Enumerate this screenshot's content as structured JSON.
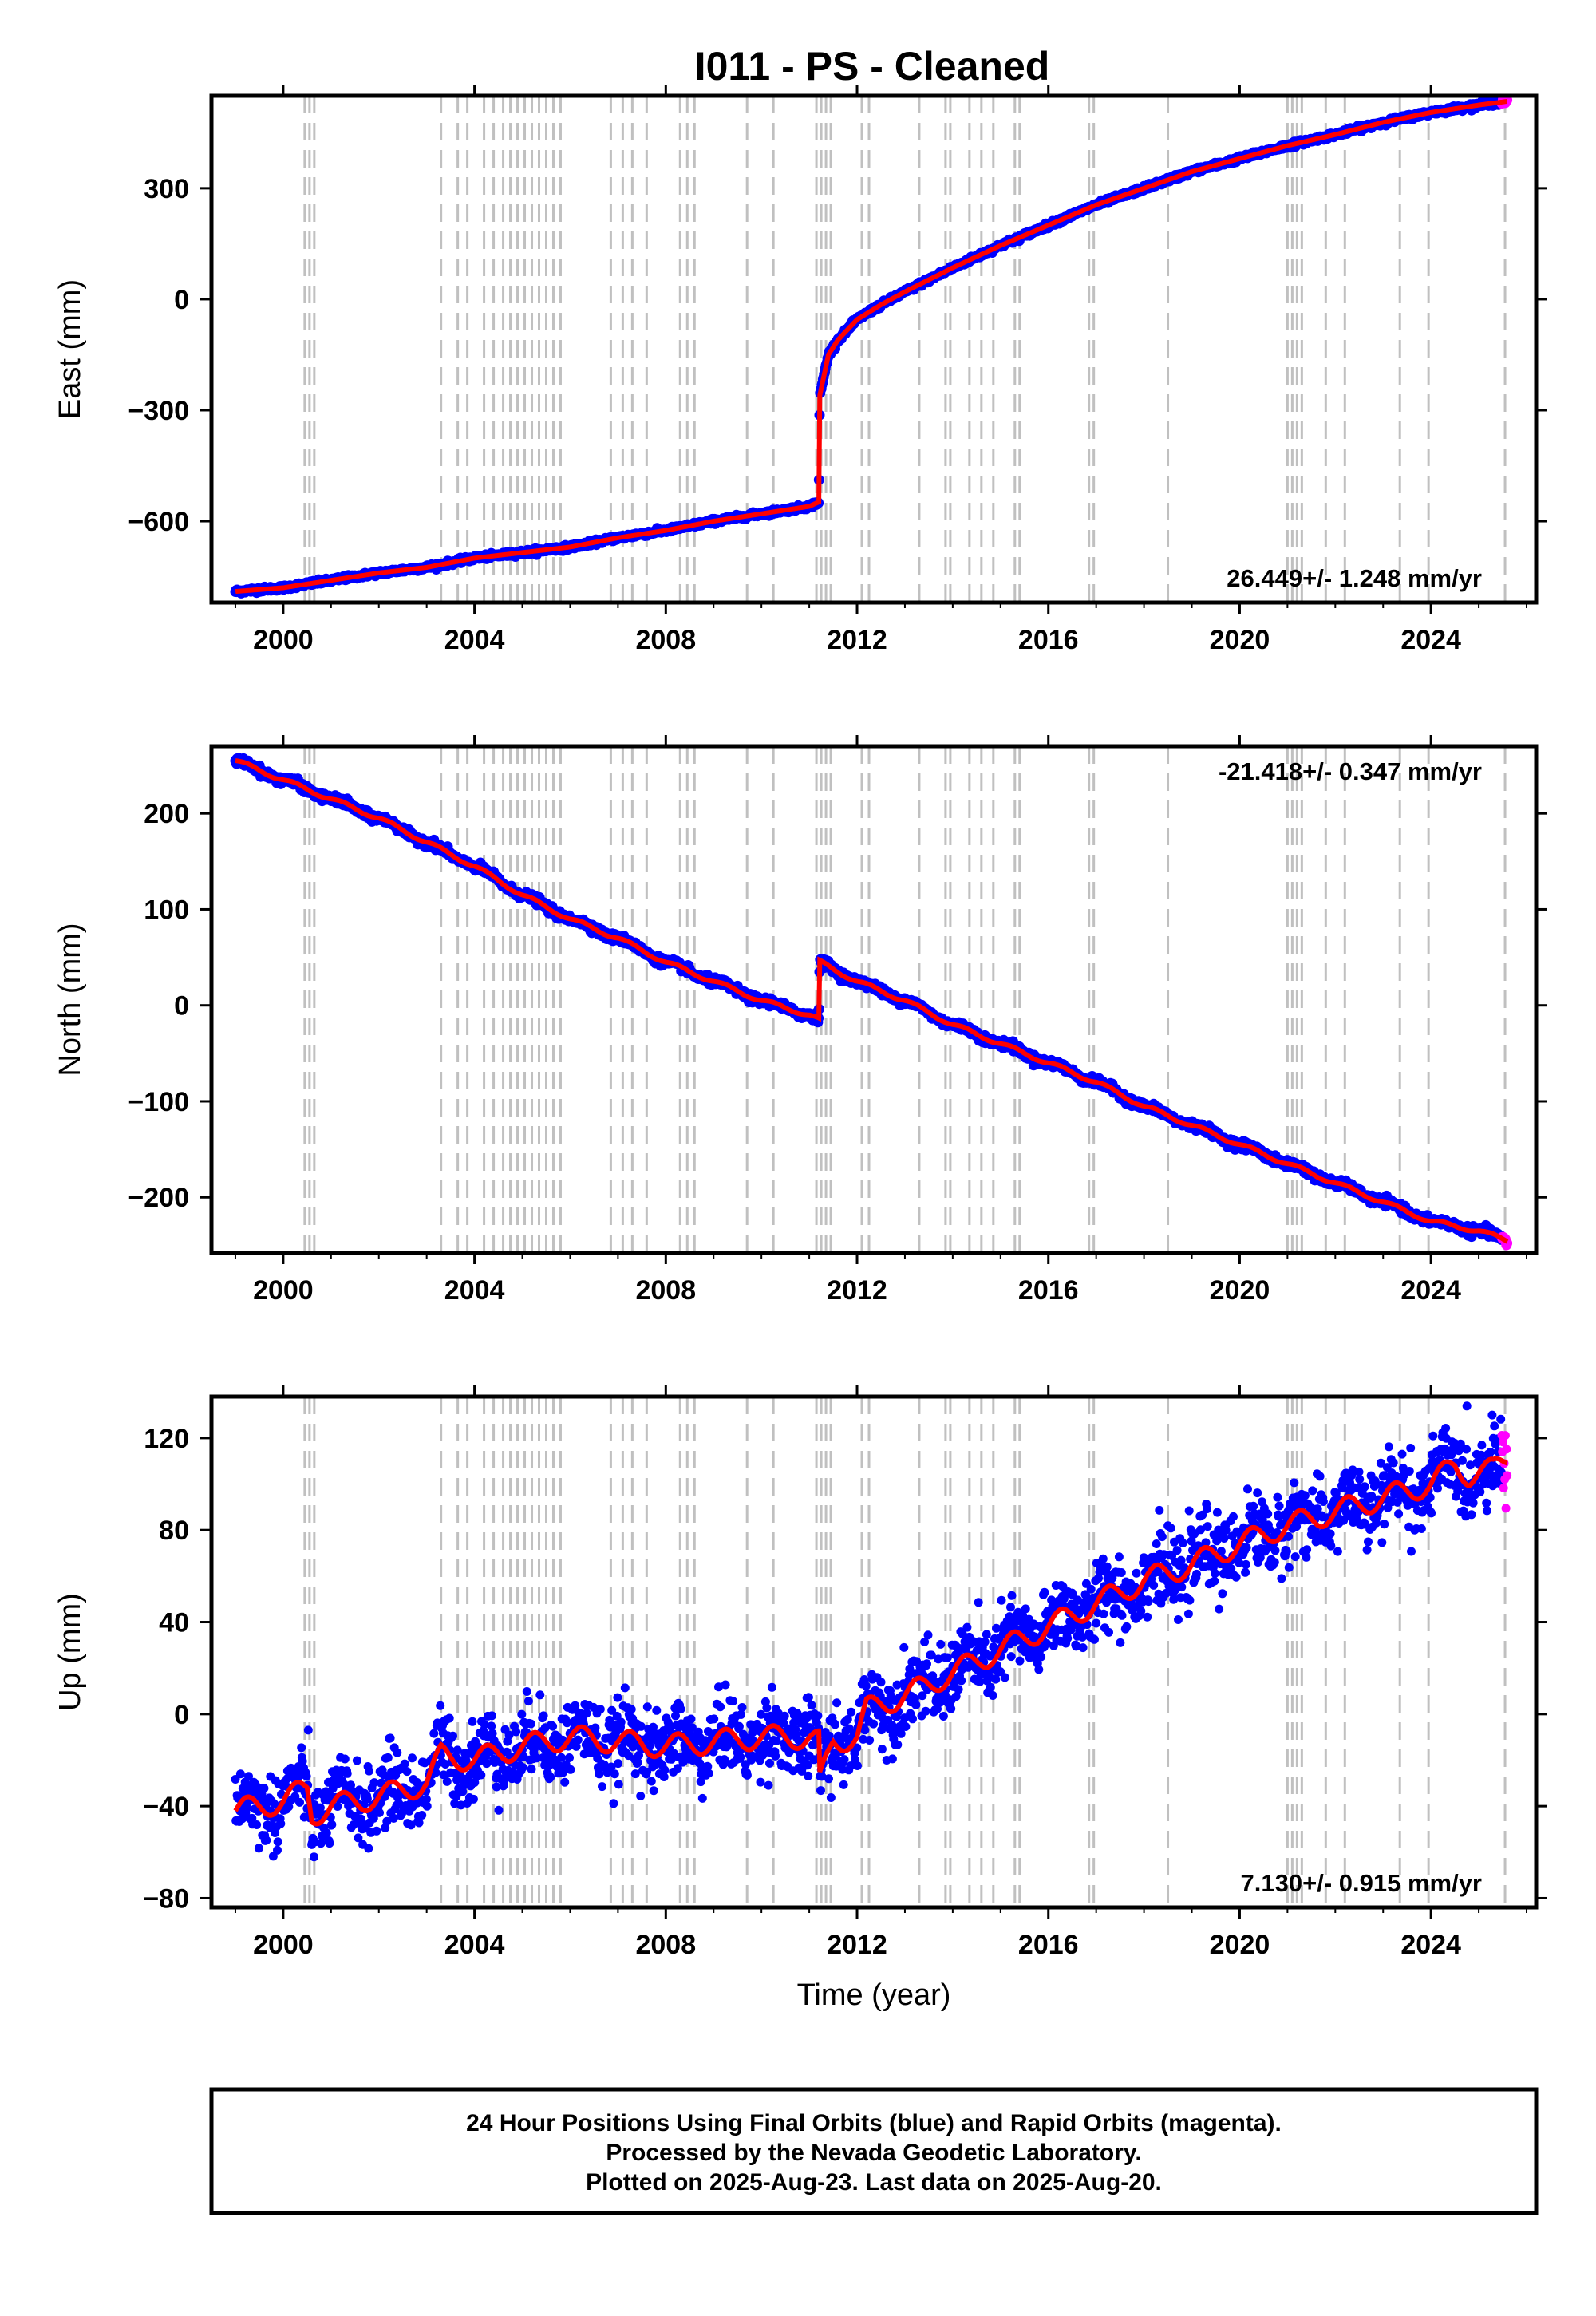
{
  "figure": {
    "title": "I011  - PS - Cleaned",
    "caption": [
      "24 Hour Positions Using Final Orbits (blue) and Rapid Orbits (magenta).",
      "Processed by the Nevada Geodetic Laboratory.",
      "Plotted on 2025-Aug-23. Last data on 2025-Aug-20."
    ],
    "colors": {
      "final": "#0000ff",
      "rapid": "#ff00ff",
      "model": "#ff0000",
      "steps": "#c0c0c0",
      "frame": "#000000"
    }
  },
  "chart_data": [
    {
      "type": "scatter",
      "ylabel": "East (mm)",
      "xlabel": "",
      "xlim": [
        1998.5,
        2026.2
      ],
      "ylim": [
        -820,
        550
      ],
      "xticks": [
        2000,
        2004,
        2008,
        2012,
        2016,
        2020,
        2024
      ],
      "yticks": [
        -600,
        -300,
        0,
        300
      ],
      "ytick_labels": [
        "−600",
        "−300",
        "0",
        "300"
      ],
      "rate_label": "26.449+/- 1.248 mm/yr",
      "rate_position": "bottom-right",
      "noise": 3,
      "seasonal": 0,
      "step_lines": [
        2000.45,
        2000.55,
        2000.65,
        2003.3,
        2003.65,
        2003.85,
        2004.2,
        2004.4,
        2004.6,
        2004.75,
        2004.9,
        2005.05,
        2005.2,
        2005.35,
        2005.5,
        2005.65,
        2005.8,
        2006.85,
        2007.1,
        2007.3,
        2007.6,
        2008.3,
        2008.45,
        2008.6,
        2009.7,
        2010.25,
        2011.15,
        2011.25,
        2011.35,
        2011.45,
        2012.1,
        2012.25,
        2013.3,
        2013.85,
        2013.95,
        2014.35,
        2014.6,
        2014.85,
        2015.3,
        2015.4,
        2016.85,
        2016.95,
        2018.5,
        2021.0,
        2021.1,
        2021.2,
        2021.3,
        2021.8,
        2022.2,
        2023.35,
        2023.95,
        2025.55
      ],
      "series": [
        {
          "name": "",
          "x": [
            1999.0,
            2000.0,
            2001.0,
            2002.0,
            2003.0,
            2004.0,
            2005.0,
            2006.0,
            2007.0,
            2008.0,
            2009.0,
            2010.0,
            2011.0,
            2011.2,
            2011.22,
            2011.4,
            2011.6,
            2012.0,
            2012.5,
            2013.0,
            2014.0,
            2015.0,
            2016.0,
            2017.0,
            2018.0,
            2019.0,
            2020.0,
            2021.0,
            2022.0,
            2023.0,
            2024.0,
            2025.0,
            2025.6
          ],
          "y": [
            -790,
            -780,
            -760,
            -740,
            -725,
            -700,
            -685,
            -670,
            -645,
            -625,
            -600,
            -580,
            -560,
            -548,
            -260,
            -150,
            -110,
            -55,
            -15,
            20,
            85,
            145,
            200,
            255,
            300,
            345,
            380,
            415,
            445,
            478,
            505,
            525,
            535
          ]
        }
      ]
    },
    {
      "type": "scatter",
      "ylabel": "North (mm)",
      "xlabel": "",
      "xlim": [
        1998.5,
        2026.2
      ],
      "ylim": [
        -258,
        270
      ],
      "xticks": [
        2000,
        2004,
        2008,
        2012,
        2016,
        2020,
        2024
      ],
      "yticks": [
        -200,
        -100,
        0,
        100,
        200
      ],
      "ytick_labels": [
        "−200",
        "−100",
        "0",
        "100",
        "200"
      ],
      "rate_label": "-21.418+/- 0.347 mm/yr",
      "rate_position": "top-right",
      "noise": 2,
      "seasonal": 2,
      "step_lines": [
        2000.45,
        2000.55,
        2000.65,
        2003.3,
        2003.65,
        2003.85,
        2004.2,
        2004.4,
        2004.6,
        2004.75,
        2004.9,
        2005.05,
        2005.2,
        2005.35,
        2005.5,
        2005.65,
        2005.8,
        2006.85,
        2007.1,
        2007.3,
        2007.6,
        2008.3,
        2008.45,
        2008.6,
        2009.7,
        2010.25,
        2011.15,
        2011.25,
        2011.35,
        2011.45,
        2012.1,
        2012.25,
        2013.3,
        2013.85,
        2013.95,
        2014.35,
        2014.6,
        2014.85,
        2015.3,
        2015.4,
        2016.85,
        2016.95,
        2018.5,
        2021.0,
        2021.1,
        2021.2,
        2021.3,
        2021.8,
        2022.2,
        2023.35,
        2023.95,
        2025.55
      ],
      "series": [
        {
          "name": "",
          "x": [
            1999.0,
            2000.0,
            2001.0,
            2002.0,
            2003.0,
            2004.0,
            2005.0,
            2006.0,
            2007.0,
            2008.0,
            2009.0,
            2010.0,
            2011.0,
            2011.2,
            2011.22,
            2012.0,
            2013.0,
            2014.0,
            2015.0,
            2016.0,
            2017.0,
            2018.0,
            2019.0,
            2020.0,
            2021.0,
            2022.0,
            2023.0,
            2024.0,
            2025.0,
            2025.6
          ],
          "y": [
            255,
            235,
            215,
            195,
            170,
            145,
            115,
            90,
            70,
            45,
            25,
            5,
            -10,
            -15,
            45,
            25,
            5,
            -20,
            -40,
            -60,
            -80,
            -105,
            -125,
            -145,
            -165,
            -185,
            -205,
            -225,
            -235,
            -245
          ]
        }
      ]
    },
    {
      "type": "scatter",
      "ylabel": "Up (mm)",
      "xlabel": "Time (year)",
      "xlim": [
        1998.5,
        2026.2
      ],
      "ylim": [
        -84,
        138
      ],
      "xticks": [
        2000,
        2004,
        2008,
        2012,
        2016,
        2020,
        2024
      ],
      "yticks": [
        -80,
        -40,
        0,
        40,
        80,
        120
      ],
      "ytick_labels": [
        "−80",
        "−40",
        "0",
        "40",
        "80",
        "120"
      ],
      "rate_label": "7.130+/- 0.915 mm/yr",
      "rate_position": "bottom-right",
      "noise": 8,
      "seasonal": 5,
      "step_lines": [
        2000.45,
        2000.55,
        2000.65,
        2003.3,
        2003.65,
        2003.85,
        2004.2,
        2004.4,
        2004.6,
        2004.75,
        2004.9,
        2005.05,
        2005.2,
        2005.35,
        2005.5,
        2005.65,
        2005.8,
        2006.85,
        2007.1,
        2007.3,
        2007.6,
        2008.3,
        2008.45,
        2008.6,
        2009.7,
        2010.25,
        2011.15,
        2011.25,
        2011.35,
        2011.45,
        2012.1,
        2012.25,
        2013.3,
        2013.85,
        2013.95,
        2014.35,
        2014.6,
        2014.85,
        2015.3,
        2015.4,
        2016.85,
        2016.95,
        2018.5,
        2021.0,
        2021.1,
        2021.2,
        2021.3,
        2021.8,
        2022.2,
        2023.35,
        2023.95,
        2025.55
      ],
      "series": [
        {
          "name": "",
          "x": [
            1999.0,
            2000.0,
            2000.5,
            2000.6,
            2001.0,
            2002.0,
            2003.0,
            2003.3,
            2004.0,
            2005.0,
            2006.0,
            2007.0,
            2008.0,
            2009.0,
            2010.0,
            2011.0,
            2011.2,
            2011.22,
            2011.5,
            2012.0,
            2012.2,
            2013.0,
            2014.0,
            2015.0,
            2016.0,
            2017.0,
            2018.0,
            2019.0,
            2020.0,
            2021.0,
            2022.0,
            2023.0,
            2024.0,
            2024.5,
            2024.8,
            2025.3,
            2025.6
          ],
          "y": [
            -42,
            -38,
            -32,
            -44,
            -40,
            -36,
            -30,
            -18,
            -20,
            -14,
            -10,
            -12,
            -14,
            -12,
            -10,
            -10,
            -12,
            -30,
            -12,
            -10,
            2,
            8,
            18,
            28,
            38,
            48,
            58,
            65,
            74,
            82,
            88,
            94,
            100,
            108,
            104,
            106,
            112
          ]
        }
      ]
    }
  ]
}
